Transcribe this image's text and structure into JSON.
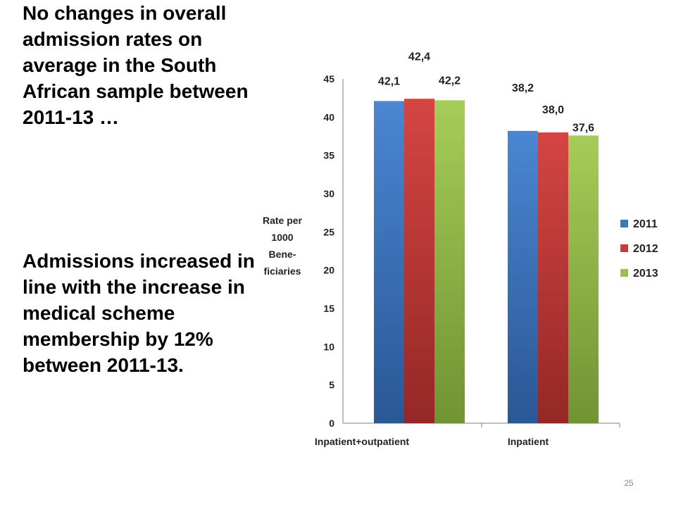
{
  "slide": {
    "paragraph1": "No changes in overall admission rates on average in the South African sample between 2011-13 …",
    "paragraph2": "Admissions increased in line with the increase in medical scheme membership  by 12% between 2011-13.",
    "slide_number": "25"
  },
  "chart_data": {
    "type": "bar",
    "title": "",
    "xlabel": "",
    "ylabel": [
      "Rate per",
      "1000",
      "Bene-",
      "ficiaries"
    ],
    "categories": [
      "Inpatient+outpatient",
      "Inpatient"
    ],
    "ylim": [
      0,
      45
    ],
    "yticks": [
      0,
      5,
      10,
      15,
      20,
      25,
      30,
      35,
      40,
      45
    ],
    "grid": false,
    "legend_position": "right",
    "series": [
      {
        "name": "2011",
        "values": [
          42.1,
          38.2
        ],
        "labels": [
          "42,1",
          "38,2"
        ],
        "color": "#3b76c4"
      },
      {
        "name": "2012",
        "values": [
          42.4,
          38.0
        ],
        "labels": [
          "42,4",
          "38,0"
        ],
        "color": "#c93a38"
      },
      {
        "name": "2013",
        "values": [
          42.2,
          37.6
        ],
        "labels": [
          "42,2",
          "37,6"
        ],
        "color": "#97c14a"
      }
    ]
  }
}
